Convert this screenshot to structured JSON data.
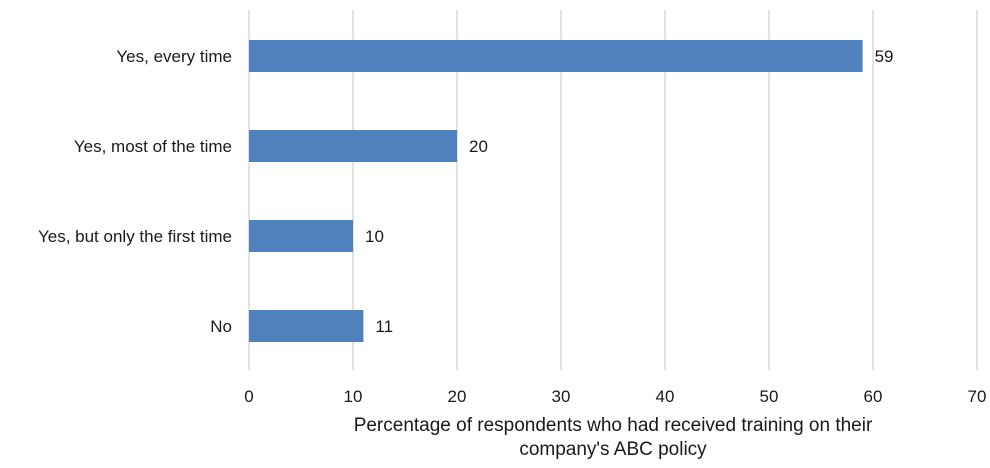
{
  "chart_data": {
    "type": "bar",
    "orientation": "horizontal",
    "categories": [
      "Yes, every time",
      "Yes, most of the time",
      "Yes, but only the first time",
      "No"
    ],
    "values": [
      59,
      20,
      10,
      11
    ],
    "data_labels": [
      "59",
      "20",
      "10",
      "11"
    ],
    "xlabel_lines": [
      "Percentage of respondents who had received training on their",
      "company's ABC policy"
    ],
    "ylabel": "",
    "title": "",
    "xlim": [
      0,
      70
    ],
    "xticks": [
      0,
      10,
      20,
      30,
      40,
      50,
      60,
      70
    ],
    "xtick_labels": [
      "0",
      "10",
      "20",
      "30",
      "40",
      "50",
      "60",
      "70"
    ],
    "grid": "vertical",
    "legend": "none",
    "bar_color": "#4f81bd",
    "grid_color": "#d9d9d9"
  }
}
